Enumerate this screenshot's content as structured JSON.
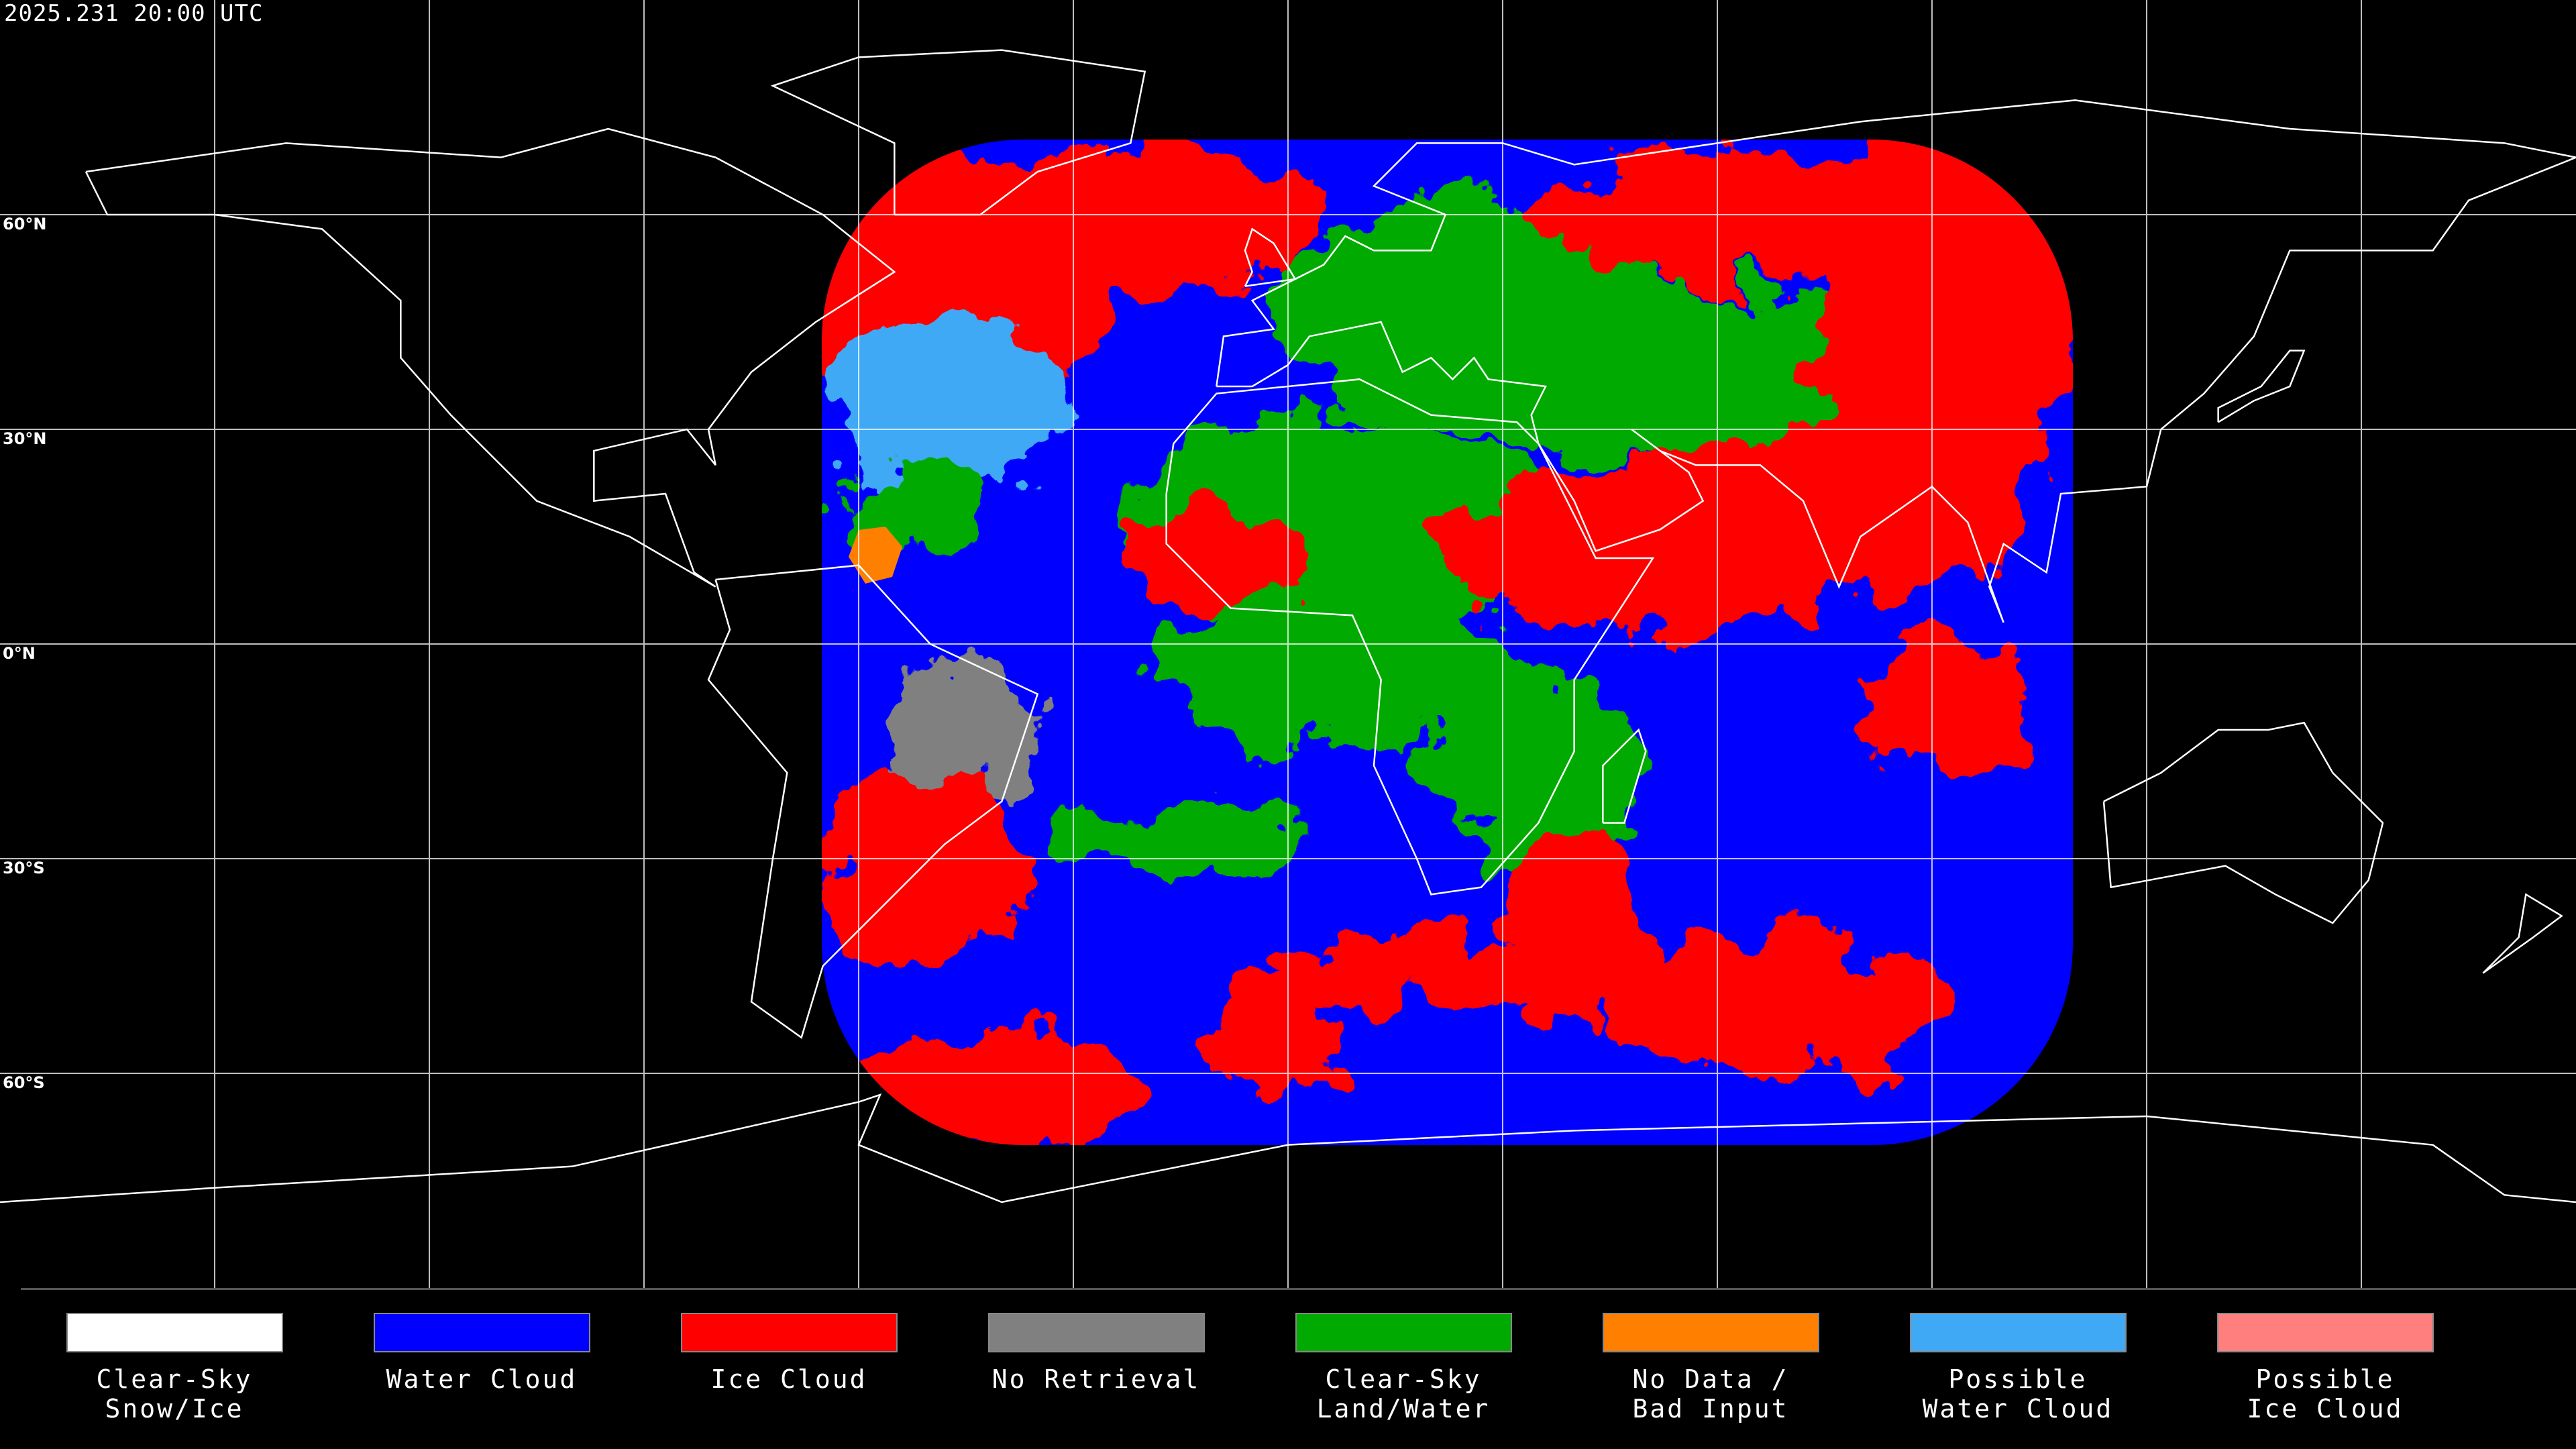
{
  "header": {
    "timestamp": "2025.231 20:00 UTC"
  },
  "latitude_labels": [
    "60°N",
    "30°N",
    "0°N",
    "30°S",
    "60°S"
  ],
  "legend": {
    "items": [
      {
        "label": [
          "Clear-Sky",
          "Snow/Ice"
        ],
        "color": "#ffffff"
      },
      {
        "label": [
          "Water Cloud"
        ],
        "color": "#0000ff"
      },
      {
        "label": [
          "Ice Cloud"
        ],
        "color": "#ff0000"
      },
      {
        "label": [
          "No Retrieval"
        ],
        "color": "#808080"
      },
      {
        "label": [
          "Clear-Sky",
          "Land/Water"
        ],
        "color": "#00aa00"
      },
      {
        "label": [
          "No Data /",
          "Bad Input"
        ],
        "color": "#ff8000"
      },
      {
        "label": [
          "Possible",
          "Water Cloud"
        ],
        "color": "#3fa9f5"
      },
      {
        "label": [
          "Possible",
          "Ice Cloud"
        ],
        "color": "#ff7f7f"
      }
    ]
  }
}
